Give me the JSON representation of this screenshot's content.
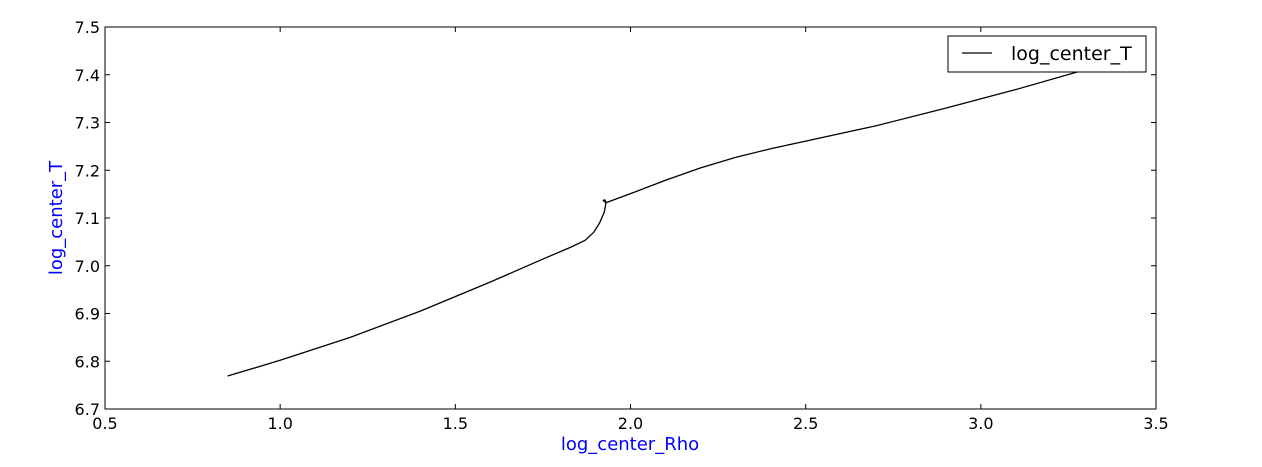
{
  "chart_data": {
    "type": "line",
    "title": "",
    "xlabel": "log_center_Rho",
    "ylabel": "log_center_T",
    "label_color": "#0000ff",
    "line_color": "#000000",
    "xlim": [
      0.5,
      3.5
    ],
    "ylim": [
      6.7,
      7.5
    ],
    "xticks": [
      "0.5",
      "1.0",
      "1.5",
      "2.0",
      "2.5",
      "3.0",
      "3.5"
    ],
    "yticks": [
      "6.7",
      "6.8",
      "6.9",
      "7.0",
      "7.1",
      "7.2",
      "7.3",
      "7.4",
      "7.5"
    ],
    "grid": false,
    "legend_position": "top-right",
    "series": [
      {
        "name": "log_center_T",
        "x": [
          0.85,
          1.0,
          1.2,
          1.4,
          1.6,
          1.75,
          1.83,
          1.87,
          1.895,
          1.912,
          1.925,
          1.93,
          1.927,
          1.922,
          1.93,
          2.0,
          2.1,
          2.2,
          2.3,
          2.4,
          2.5,
          2.7,
          2.9,
          3.1,
          3.3,
          3.45
        ],
        "y": [
          6.769,
          6.802,
          6.85,
          6.905,
          6.966,
          7.014,
          7.039,
          7.053,
          7.07,
          7.09,
          7.112,
          7.132,
          7.138,
          7.137,
          7.132,
          7.151,
          7.179,
          7.205,
          7.227,
          7.245,
          7.261,
          7.293,
          7.33,
          7.369,
          7.411,
          7.445
        ]
      }
    ]
  }
}
